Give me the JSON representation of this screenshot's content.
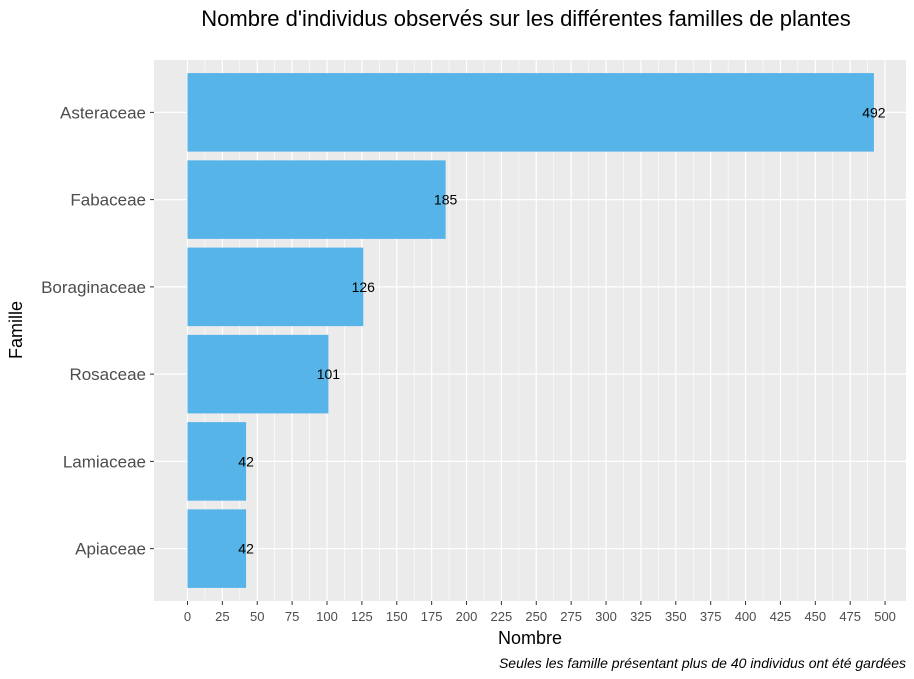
{
  "chart_data": {
    "type": "bar",
    "orientation": "horizontal",
    "title": "Nombre d'individus observés sur les différentes familles de plantes",
    "xlabel": "Nombre",
    "ylabel": "Famille",
    "caption": "Seules les famille présentant plus de 40 individus ont été gardées",
    "categories": [
      "Asteraceae",
      "Fabaceae",
      "Boraginaceae",
      "Rosaceae",
      "Lamiaceae",
      "Apiaceae"
    ],
    "values": [
      492,
      185,
      126,
      101,
      42,
      42
    ],
    "xlim": [
      -24,
      515
    ],
    "xticks": [
      0,
      25,
      50,
      75,
      100,
      125,
      150,
      175,
      200,
      225,
      250,
      275,
      300,
      325,
      350,
      375,
      400,
      425,
      450,
      475,
      500
    ],
    "grid": true,
    "bar_color": "#56B4E9",
    "panel_color": "#EBEBEB"
  }
}
